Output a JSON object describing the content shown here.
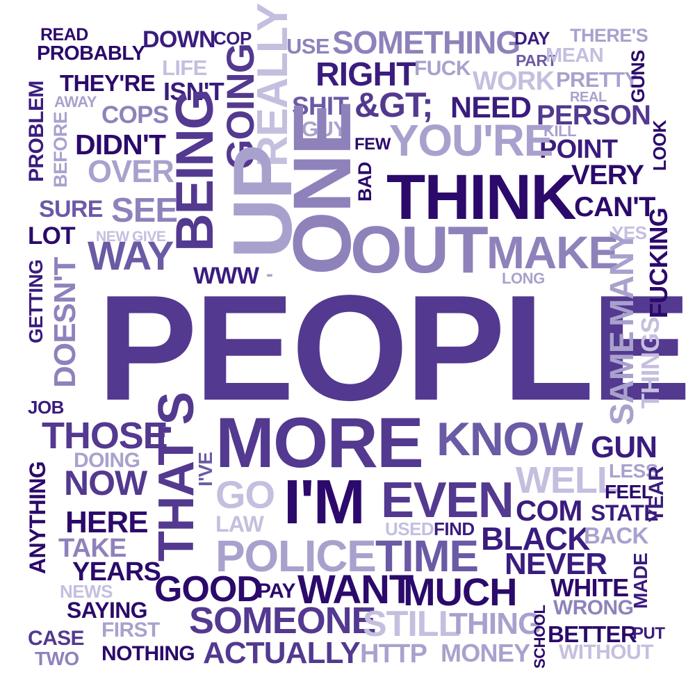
{
  "palette": {
    "dark": "#2b0a6b",
    "deep": "#3a1c7e",
    "main": "#53398f",
    "mid": "#6b5aa5",
    "soft": "#8f82bb",
    "light": "#a9a1cd",
    "pale": "#c4bfdf"
  },
  "words": [
    "READ",
    "PROBABLY",
    "DOWN",
    "COP",
    "USE",
    "SOMETHING",
    "DAY",
    "THERE'S",
    "PART",
    "MEAN",
    "LIFE",
    "THEY'RE",
    "RIGHT",
    "FUCK",
    "WORK",
    "PRETTY",
    "GUNS",
    "AWAY",
    "ISN'T",
    "SHIT",
    "&GT;",
    "NEED",
    "REAL",
    "PERSON",
    "COPS",
    "GUY",
    "KILL",
    "DIDN'T",
    "FEW",
    "POINT",
    "OVER",
    "VERY",
    "SURE",
    "SEE",
    "CAN'T",
    "LOT",
    "NEW",
    "GIVE",
    "YES",
    "WAY",
    "MAKE",
    "WWW",
    "-",
    "LONG",
    "THINK",
    "YOU'RE",
    "PROBLEM",
    "BEFORE",
    "BEING",
    "GOING",
    "REALLY",
    "UP",
    "ONE",
    "OUT",
    "BAD",
    "LOOK",
    "GETTING",
    "DOESN'T",
    "PEOPLE",
    "FUCKING",
    "MANY",
    "THINGS",
    "SAME",
    "JOB",
    "THOSE",
    "THAT'S",
    "MORE",
    "KNOW",
    "GUN",
    "DOING",
    "I'VE",
    "LESS",
    "NOW",
    "WELL",
    "GO",
    "I'M",
    "EVEN",
    "FEEL",
    "YEAR",
    "ANYTHING",
    "HERE",
    "LAW",
    "COM",
    "STATE",
    "USED",
    "FIND",
    "TAKE",
    "BLACK",
    "BACK",
    "POLICE",
    "TIME",
    "YEARS",
    "NEVER",
    "MADE",
    "NEWS",
    "GOOD",
    "PAY",
    "WANT",
    "MUCH",
    "WHITE",
    "SAYING",
    "WRONG",
    "SOMEONE",
    "STILL",
    "THING",
    "FIRST",
    "SCHOOL",
    "BETTER",
    "PUT",
    "CASE",
    "NOTHING",
    "ACTUALLY",
    "HTTP",
    "MONEY",
    "WITHOUT",
    "TWO"
  ]
}
